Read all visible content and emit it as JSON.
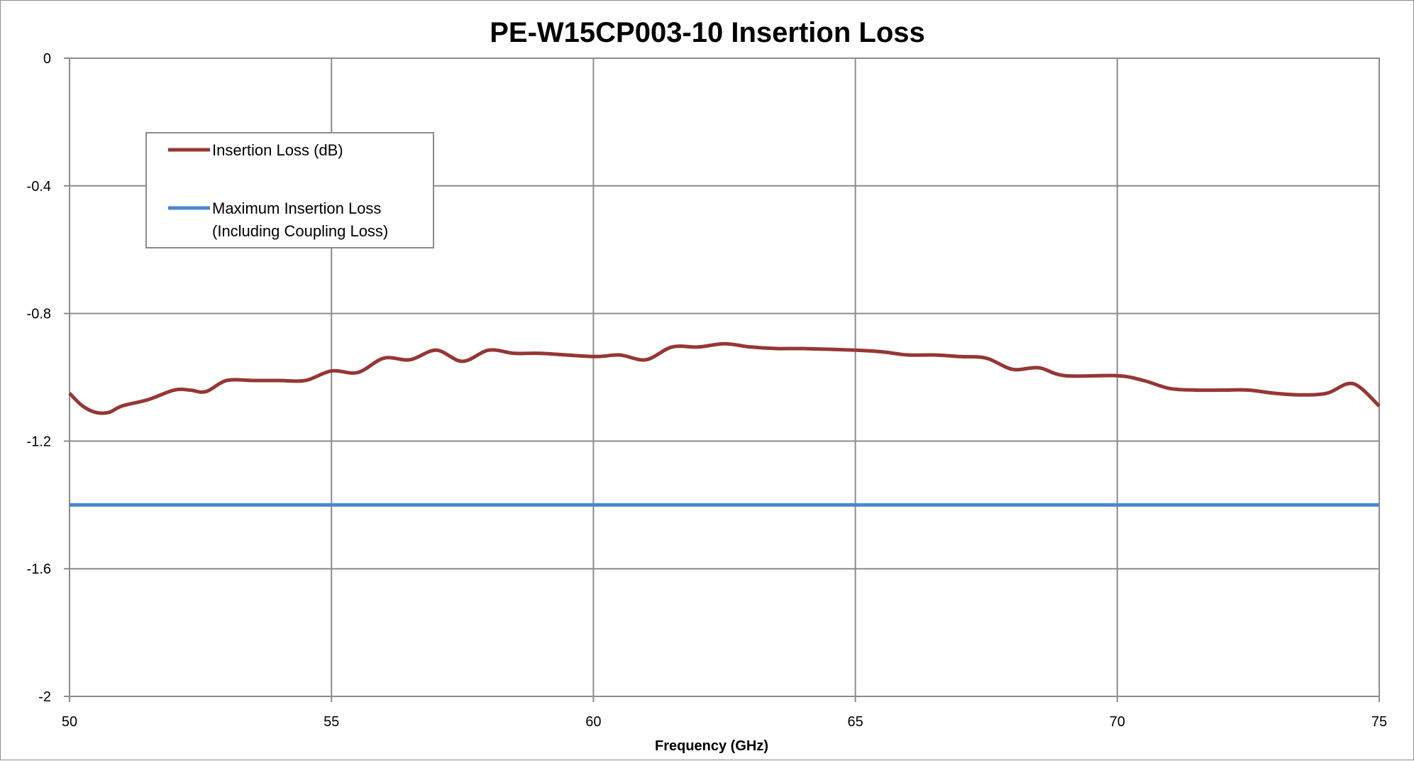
{
  "chart_data": {
    "type": "line",
    "title": "PE-W15CP003-10 Insertion Loss",
    "xlabel": "Frequency (GHz)",
    "ylabel": "",
    "xlim": [
      50,
      75
    ],
    "ylim": [
      -2,
      0
    ],
    "x_ticks": [
      "50",
      "55",
      "60",
      "65",
      "70",
      "75"
    ],
    "y_ticks": [
      "0",
      "-0.4",
      "-0.8",
      "-1.2",
      "-1.6",
      "-2"
    ],
    "grid": true,
    "legend_position": "top-left",
    "legend": [
      "Insertion Loss (dB)",
      "Maximum Insertion Loss",
      "(Including Coupling Loss)"
    ],
    "series": [
      {
        "name": "Insertion Loss (dB)",
        "color": "#953735",
        "x": [
          50,
          50.25,
          50.5,
          50.75,
          51,
          51.5,
          52,
          52.3,
          52.6,
          53,
          53.5,
          54,
          54.5,
          55,
          55.5,
          56,
          56.5,
          57,
          57.5,
          58,
          58.5,
          59,
          60,
          60.5,
          61,
          61.5,
          62,
          62.5,
          63,
          63.5,
          64,
          65,
          65.5,
          66,
          66.5,
          67,
          67.5,
          68,
          68.5,
          69,
          70,
          70.5,
          71,
          71.5,
          72,
          72.5,
          73,
          73.5,
          74,
          74.5,
          75
        ],
        "y": [
          -1.05,
          -1.09,
          -1.11,
          -1.11,
          -1.09,
          -1.07,
          -1.04,
          -1.04,
          -1.045,
          -1.01,
          -1.01,
          -1.01,
          -1.01,
          -0.98,
          -0.985,
          -0.94,
          -0.945,
          -0.915,
          -0.95,
          -0.915,
          -0.925,
          -0.925,
          -0.935,
          -0.93,
          -0.945,
          -0.905,
          -0.905,
          -0.895,
          -0.905,
          -0.91,
          -0.91,
          -0.915,
          -0.92,
          -0.93,
          -0.93,
          -0.935,
          -0.94,
          -0.975,
          -0.97,
          -0.995,
          -0.995,
          -1.01,
          -1.035,
          -1.04,
          -1.04,
          -1.04,
          -1.05,
          -1.055,
          -1.05,
          -1.02,
          -1.09
        ]
      },
      {
        "name": "Maximum Insertion Loss (Including Coupling Loss)",
        "color": "#4a86d0",
        "x": [
          50,
          75
        ],
        "y": [
          -1.4,
          -1.4
        ]
      }
    ]
  }
}
